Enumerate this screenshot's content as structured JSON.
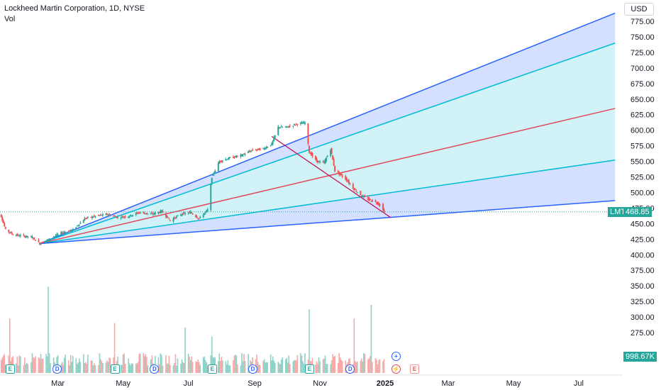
{
  "header": {
    "title": "Lockheed Martin Corporation, 1D, NYSE",
    "volume_label": "Vol"
  },
  "currency": "USD",
  "price_tag": {
    "symbol": "LMT",
    "value": "468.85",
    "price": 468.85,
    "color": "#26a69a"
  },
  "volume_tag": {
    "value": "998.67K",
    "color": "#26a69a"
  },
  "colors": {
    "up": "#26a69a",
    "down": "#ef5350",
    "volume_up": "#8fd3c8",
    "volume_down": "#f7a9a7",
    "fan_blue": "#2962ff",
    "fan_teal": "#00bcd4",
    "fan_red": "#e0485a",
    "trend_line": "#c2185b"
  },
  "chart_data": {
    "type": "candlestick",
    "y_axis": {
      "min": 275,
      "max": 775,
      "ticks": [
        275,
        300,
        325,
        350,
        375,
        400,
        425,
        450,
        475,
        500,
        525,
        550,
        575,
        600,
        625,
        650,
        675,
        700,
        725,
        750,
        775
      ],
      "tick_labels": [
        "275.00",
        "300.00",
        "325.00",
        "350.00",
        "375.00",
        "400.00",
        "425.00",
        "450.00",
        "475.00",
        "500.00",
        "525.00",
        "550.00",
        "575.00",
        "600.00",
        "625.00",
        "650.00",
        "675.00",
        "700.00",
        "725.00",
        "750.00",
        "775.00"
      ]
    },
    "x_axis": {
      "labels": [
        {
          "text": "Mar",
          "date": "2024-03-01",
          "bold": false
        },
        {
          "text": "May",
          "date": "2024-05-01",
          "bold": false
        },
        {
          "text": "Jul",
          "date": "2024-07-01",
          "bold": false
        },
        {
          "text": "Sep",
          "date": "2024-09-01",
          "bold": false
        },
        {
          "text": "Nov",
          "date": "2024-11-01",
          "bold": false
        },
        {
          "text": "2025",
          "date": "2025-01-01",
          "bold": true
        },
        {
          "text": "Mar",
          "date": "2025-03-01",
          "bold": false
        },
        {
          "text": "May",
          "date": "2025-05-01",
          "bold": false
        },
        {
          "text": "Jul",
          "date": "2025-07-01",
          "bold": false
        }
      ]
    },
    "price_path": [
      [
        "2024-01-02",
        465
      ],
      [
        "2024-01-08",
        462
      ],
      [
        "2024-01-12",
        440
      ],
      [
        "2024-01-20",
        432
      ],
      [
        "2024-01-29",
        430
      ],
      [
        "2024-02-06",
        428
      ],
      [
        "2024-02-13",
        418
      ],
      [
        "2024-02-22",
        425
      ],
      [
        "2024-03-04",
        435
      ],
      [
        "2024-03-15",
        440
      ],
      [
        "2024-03-26",
        458
      ],
      [
        "2024-04-05",
        462
      ],
      [
        "2024-04-16",
        465
      ],
      [
        "2024-04-26",
        460
      ],
      [
        "2024-05-06",
        462
      ],
      [
        "2024-05-16",
        468
      ],
      [
        "2024-05-28",
        465
      ],
      [
        "2024-06-06",
        470
      ],
      [
        "2024-06-14",
        455
      ],
      [
        "2024-06-24",
        465
      ],
      [
        "2024-07-03",
        468
      ],
      [
        "2024-07-11",
        458
      ],
      [
        "2024-07-19",
        472
      ],
      [
        "2024-07-23",
        525
      ],
      [
        "2024-07-30",
        550
      ],
      [
        "2024-08-08",
        555
      ],
      [
        "2024-08-20",
        560
      ],
      [
        "2024-08-30",
        568
      ],
      [
        "2024-09-09",
        570
      ],
      [
        "2024-09-17",
        578
      ],
      [
        "2024-09-23",
        605
      ],
      [
        "2024-10-01",
        605
      ],
      [
        "2024-10-10",
        610
      ],
      [
        "2024-10-18",
        612
      ],
      [
        "2024-10-22",
        565
      ],
      [
        "2024-10-29",
        550
      ],
      [
        "2024-11-05",
        548
      ],
      [
        "2024-11-11",
        570
      ],
      [
        "2024-11-15",
        535
      ],
      [
        "2024-11-25",
        522
      ],
      [
        "2024-12-03",
        505
      ],
      [
        "2024-12-10",
        495
      ],
      [
        "2024-12-17",
        488
      ],
      [
        "2024-12-23",
        485
      ],
      [
        "2024-12-27",
        480
      ],
      [
        "2024-12-31",
        468.85
      ]
    ],
    "volume_spikes": [
      {
        "date": "2024-02-21",
        "up": true,
        "rel": 0.95
      },
      {
        "date": "2024-01-16",
        "up": false,
        "rel": 0.6
      },
      {
        "date": "2024-04-23",
        "up": false,
        "rel": 0.55
      },
      {
        "date": "2024-06-28",
        "up": true,
        "rel": 0.5
      },
      {
        "date": "2024-07-23",
        "up": true,
        "rel": 0.4
      },
      {
        "date": "2024-10-22",
        "up": true,
        "rel": 0.7
      },
      {
        "date": "2024-12-03",
        "up": false,
        "rel": 0.6
      },
      {
        "date": "2024-12-19",
        "up": true,
        "rel": 0.75
      }
    ],
    "drawings": {
      "fan_origin": [
        "2024-02-13",
        418
      ],
      "fan_lines": [
        {
          "color": "fan_blue",
          "end": [
            "2025-08-04",
            788
          ]
        },
        {
          "color": "fan_teal",
          "end": [
            "2025-08-04",
            740
          ]
        },
        {
          "color": "fan_red",
          "end": [
            "2025-08-04",
            635
          ]
        },
        {
          "color": "fan_teal",
          "end": [
            "2025-08-04",
            552
          ]
        },
        {
          "color": "fan_blue",
          "end": [
            "2025-08-04",
            487
          ]
        }
      ],
      "trend_line": {
        "start": [
          "2024-09-17",
          590
        ],
        "end": [
          "2025-01-06",
          460
        ]
      }
    },
    "events": [
      {
        "date": "2024-01-16",
        "kind": "E"
      },
      {
        "date": "2024-02-29",
        "kind": "D"
      },
      {
        "date": "2024-04-23",
        "kind": "E"
      },
      {
        "date": "2024-05-30",
        "kind": "D"
      },
      {
        "date": "2024-07-23",
        "kind": "E"
      },
      {
        "date": "2024-08-30",
        "kind": "D"
      },
      {
        "date": "2024-10-22",
        "kind": "E"
      },
      {
        "date": "2024-11-29",
        "kind": "D"
      }
    ]
  }
}
